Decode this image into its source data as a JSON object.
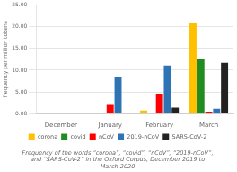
{
  "chart_data": {
    "type": "bar",
    "title": "Frequency of the words “corona”, “covid”, “nCoV”, “2019-nCoV”,\nand “SARS-CoV-2” in the Oxford Corpus, December 2019 to\nMarch 2020",
    "ylabel": "frequency per million tokens",
    "categories": [
      "December",
      "January",
      "February",
      "March"
    ],
    "series": [
      {
        "name": "corona",
        "color": "#FFC000",
        "values": [
          0.02,
          0.05,
          0.7,
          21.0
        ]
      },
      {
        "name": "covid",
        "color": "#228B22",
        "values": [
          0.02,
          0.05,
          0.25,
          12.5
        ]
      },
      {
        "name": "nCoV",
        "color": "#FF0000",
        "values": [
          0.02,
          2.0,
          4.6,
          0.45
        ]
      },
      {
        "name": "2019-nCoV",
        "color": "#2E74B5",
        "values": [
          0.02,
          8.4,
          11.1,
          1.1
        ]
      },
      {
        "name": "SARS-CoV-2",
        "color": "#222222",
        "values": [
          0.02,
          0.02,
          1.4,
          11.7
        ]
      }
    ],
    "ylim": [
      0,
      25
    ],
    "yticks": [
      {
        "value": 0,
        "label": "0.00"
      },
      {
        "value": 5,
        "label": "5.00"
      },
      {
        "value": 10,
        "label": "10.00"
      },
      {
        "value": 15,
        "label": "15.00"
      },
      {
        "value": 20,
        "label": "20.00"
      },
      {
        "value": 25,
        "label": "25.00"
      }
    ],
    "grid": true,
    "legend": "bottom"
  }
}
